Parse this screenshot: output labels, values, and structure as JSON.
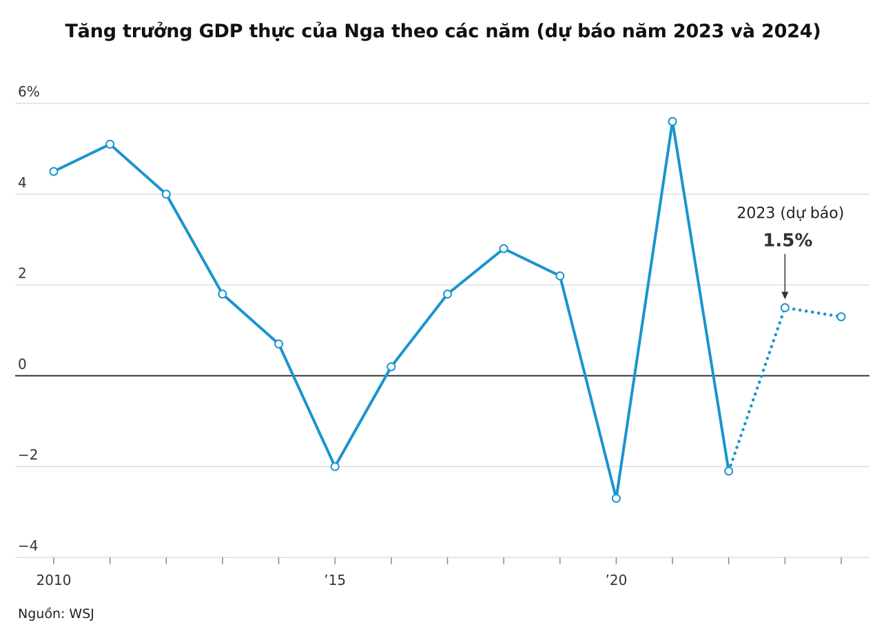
{
  "title": "Tăng trưởng GDP thực của Nga theo các năm (dự báo năm 2023 và 2024)",
  "source": "Nguồn: WSJ",
  "colors": {
    "line": "#1a94cf",
    "axis_zero": "#333333",
    "grid": "#dddddd",
    "marker_fill": "#ffffff"
  },
  "chart_data": {
    "type": "line",
    "title": "Tăng trưởng GDP thực của Nga theo các năm (dự báo năm 2023 và 2024)",
    "xlabel": "",
    "ylabel": "",
    "ylim": [
      -4,
      6
    ],
    "xlim": [
      2010,
      2024
    ],
    "y_ticks": [
      {
        "value": 6,
        "label": "6%"
      },
      {
        "value": 4,
        "label": "4"
      },
      {
        "value": 2,
        "label": "2"
      },
      {
        "value": 0,
        "label": "0"
      },
      {
        "value": -2,
        "label": "−2"
      },
      {
        "value": -4,
        "label": "−4"
      }
    ],
    "x_ticks": [
      {
        "value": 2010,
        "label": "2010"
      },
      {
        "value": 2015,
        "label": "’15"
      },
      {
        "value": 2020,
        "label": "’20"
      }
    ],
    "grid": true,
    "series": [
      {
        "x": [
          2010,
          2011,
          2012,
          2013,
          2014,
          2015,
          2016,
          2017,
          2018,
          2019,
          2020,
          2021,
          2022,
          2023,
          2024
        ],
        "values": [
          4.5,
          5.1,
          4.0,
          1.8,
          0.7,
          -2.0,
          0.2,
          1.8,
          2.8,
          2.2,
          -2.7,
          5.6,
          -2.1,
          1.5,
          1.3
        ],
        "forecast_from": 2022
      }
    ],
    "annotation": {
      "x": 2023,
      "label": "2023 (dự báo)",
      "value_label": "1.5%"
    }
  }
}
